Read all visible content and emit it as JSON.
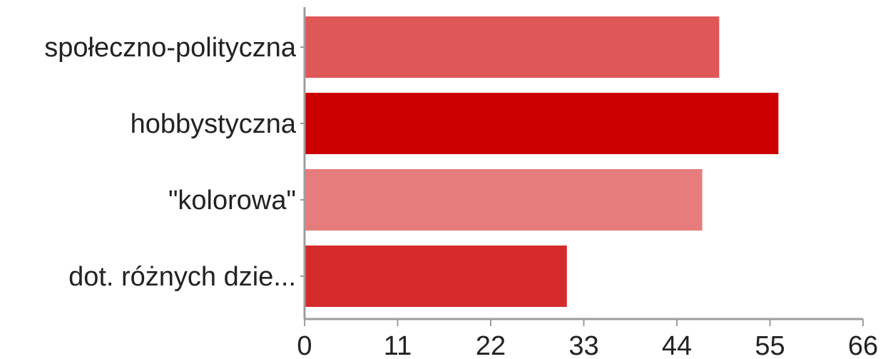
{
  "chart_data": {
    "type": "bar",
    "orientation": "horizontal",
    "categories": [
      "społeczno-polityczna",
      "hobbystyczna",
      "\"kolorowa\"",
      "dot. różnych dzie..."
    ],
    "values": [
      49,
      56,
      47,
      31
    ],
    "bar_colors": [
      "#e05757",
      "#cc0000",
      "#e67c7c",
      "#d62b2b"
    ],
    "xlim": [
      0,
      66
    ],
    "xticks": [
      0,
      11,
      22,
      33,
      44,
      55,
      66
    ],
    "xtick_labels": [
      "0",
      "11",
      "22",
      "33",
      "44",
      "55",
      "66"
    ],
    "title": "",
    "xlabel": "",
    "ylabel": "",
    "grid": false,
    "legend": "none"
  }
}
